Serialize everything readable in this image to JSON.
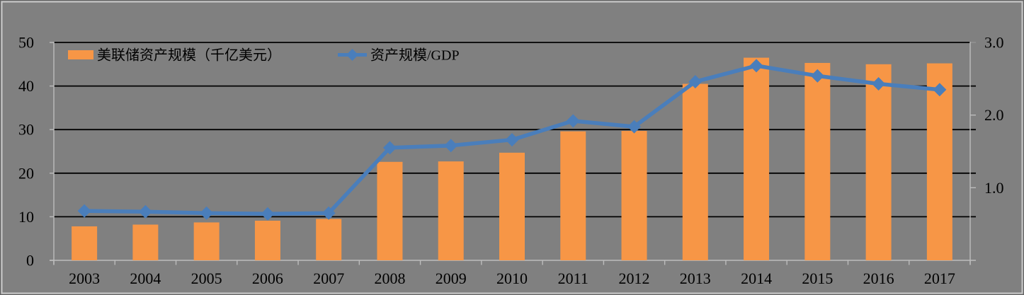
{
  "chart_data": {
    "type": "bar+line combo",
    "title": "",
    "categories": [
      "2003",
      "2004",
      "2005",
      "2006",
      "2007",
      "2008",
      "2009",
      "2010",
      "2011",
      "2012",
      "2013",
      "2014",
      "2015",
      "2016",
      "2017"
    ],
    "series": [
      {
        "name": "美联储资产规模（千亿美元）",
        "type": "bar",
        "axis": "left",
        "color": "#F79646",
        "values": [
          7.8,
          8.2,
          8.7,
          9.1,
          9.5,
          22.6,
          22.7,
          24.7,
          29.6,
          29.7,
          40.5,
          46.5,
          45.3,
          45.0,
          45.2
        ]
      },
      {
        "name": "资产规模/GDP",
        "type": "line",
        "axis": "right",
        "color": "#4A7EBB",
        "marker": "diamond",
        "values": [
          0.68,
          0.67,
          0.65,
          0.64,
          0.65,
          1.55,
          1.58,
          1.66,
          1.92,
          1.84,
          2.46,
          2.68,
          2.54,
          2.43,
          2.35
        ]
      }
    ],
    "left_axis": {
      "min": 0,
      "max": 50,
      "tick_values": [
        0,
        10,
        20,
        30,
        40,
        50
      ],
      "tick_labels": [
        "0",
        "10",
        "20",
        "30",
        "40",
        "50"
      ]
    },
    "right_axis": {
      "min": 0,
      "max": 3,
      "tick_values": [
        1,
        2,
        3
      ],
      "tick_labels": [
        "1.0",
        "2.0",
        "3.0"
      ]
    },
    "legend_position": "top-left-inside",
    "grid": true,
    "background_color": "#808080",
    "gridline_color": "#000000",
    "axis_line_color": "#BDBDBD",
    "text_color": "#000000",
    "frame_outer_border_color": "#616161",
    "frame_inner_border_color": "#C9C9C9"
  }
}
